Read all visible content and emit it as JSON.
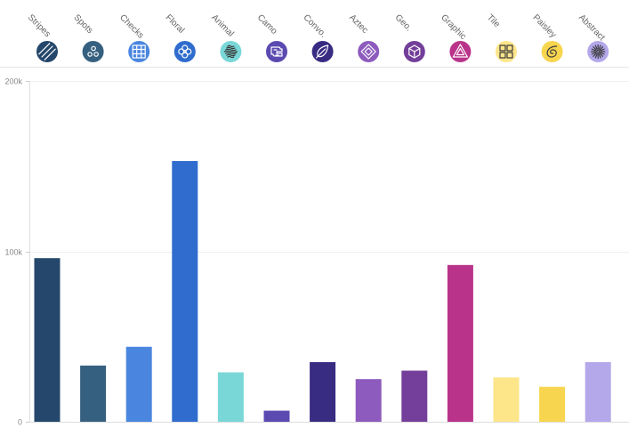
{
  "chart_data": {
    "type": "bar",
    "title": "",
    "xlabel": "",
    "ylabel": "",
    "ylim": [
      0,
      200000
    ],
    "y_ticks": [
      {
        "value": 0,
        "label": "0"
      },
      {
        "value": 100000,
        "label": "100k"
      },
      {
        "value": 200000,
        "label": "200k"
      }
    ],
    "grid": true,
    "legend": "none",
    "categories": [
      {
        "label": "Stripes",
        "value": 96000,
        "color": "#24476b",
        "icon_name": "stripes-icon",
        "icon_bg": "#24476b",
        "icon_fg": "#ffffff"
      },
      {
        "label": "Spots",
        "value": 33000,
        "color": "#36607f",
        "icon_name": "spots-icon",
        "icon_bg": "#36607f",
        "icon_fg": "#ffffff"
      },
      {
        "label": "Checks",
        "value": 44000,
        "color": "#4a86e0",
        "icon_name": "checks-icon",
        "icon_bg": "#4a86e0",
        "icon_fg": "#ffffff"
      },
      {
        "label": "Floral",
        "value": 153000,
        "color": "#2f6ccd",
        "icon_name": "floral-icon",
        "icon_bg": "#2f6ccd",
        "icon_fg": "#ffffff"
      },
      {
        "label": "Animal",
        "value": 29000,
        "color": "#7ad7d8",
        "icon_name": "animal-icon",
        "icon_bg": "#7ad7d8",
        "icon_fg": "#3a3a3a"
      },
      {
        "label": "Camo",
        "value": 6500,
        "color": "#5b4ab0",
        "icon_name": "camo-icon",
        "icon_bg": "#5b4ab0",
        "icon_fg": "#ffffff"
      },
      {
        "label": "Convo.",
        "value": 35000,
        "color": "#382b82",
        "icon_name": "feather-icon",
        "icon_bg": "#382b82",
        "icon_fg": "#ffffff"
      },
      {
        "label": "Aztec",
        "value": 25000,
        "color": "#8d5bbd",
        "icon_name": "aztec-icon",
        "icon_bg": "#8d5bbd",
        "icon_fg": "#ffffff"
      },
      {
        "label": "Geo.",
        "value": 30000,
        "color": "#733f9a",
        "icon_name": "cube-icon",
        "icon_bg": "#733f9a",
        "icon_fg": "#ffffff"
      },
      {
        "label": "Graphic",
        "value": 92000,
        "color": "#b9338a",
        "icon_name": "triangle-icon",
        "icon_bg": "#b9338a",
        "icon_fg": "#ffffff"
      },
      {
        "label": "Tile",
        "value": 26000,
        "color": "#fde58a",
        "icon_name": "tile-icon",
        "icon_bg": "#fde58a",
        "icon_fg": "#3a3a3a"
      },
      {
        "label": "Paisley",
        "value": 20500,
        "color": "#f7d54e",
        "icon_name": "paisley-icon",
        "icon_bg": "#f7d54e",
        "icon_fg": "#3a3a3a"
      },
      {
        "label": "Abstract",
        "value": 35000,
        "color": "#b4a8ea",
        "icon_name": "abstract-icon",
        "icon_bg": "#b4a8ea",
        "icon_fg": "#3a3a3a"
      }
    ]
  }
}
